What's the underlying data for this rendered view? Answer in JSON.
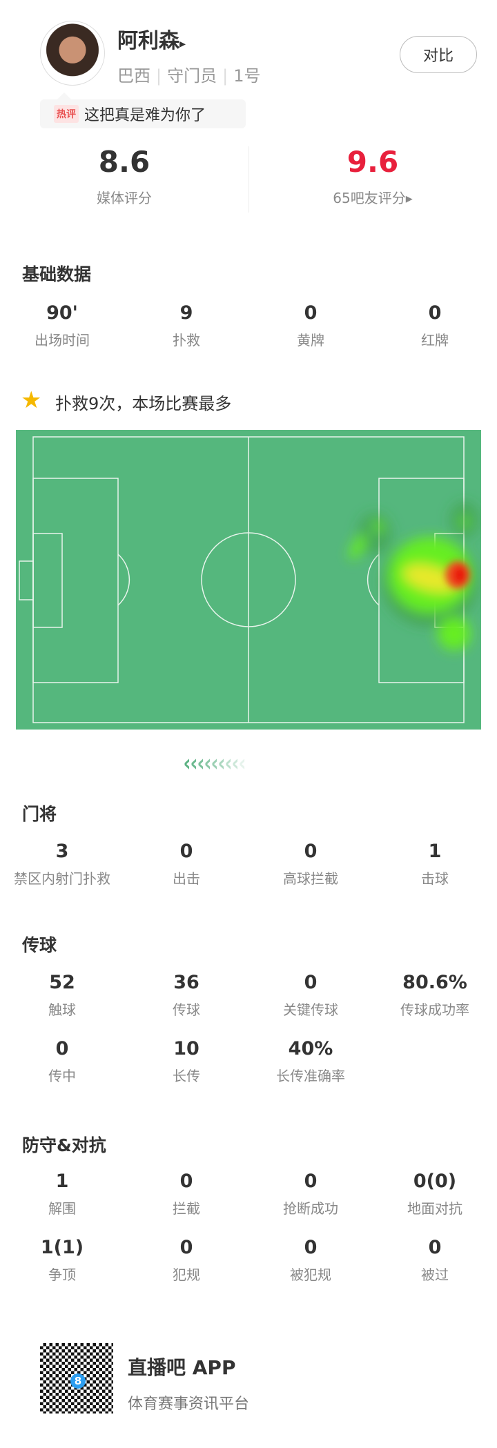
{
  "player": {
    "name": "阿利森",
    "arrow": "▸",
    "nation": "巴西",
    "position": "守门员",
    "number": "1号",
    "compare_label": "对比"
  },
  "hot_comment": {
    "tag": "热评",
    "text": "这把真是难为你了"
  },
  "ratings": {
    "media_value": "8.6",
    "media_label": "媒体评分",
    "fan_value": "9.6",
    "fan_label": "65吧友评分▸",
    "fan_color": "#e8203c"
  },
  "basic": {
    "title": "基础数据",
    "items": [
      {
        "v": "90'",
        "l": "出场时间"
      },
      {
        "v": "9",
        "l": "扑救"
      },
      {
        "v": "0",
        "l": "黄牌"
      },
      {
        "v": "0",
        "l": "红牌"
      }
    ]
  },
  "highlight": {
    "icon": "star-icon",
    "text": "扑救9次，本场比赛最多"
  },
  "heatmap": {
    "pitch_color": "#55b77d",
    "line_color": "#e8f4ec"
  },
  "goalkeeping": {
    "title": "门将",
    "items": [
      {
        "v": "3",
        "l": "禁区内射门扑救"
      },
      {
        "v": "0",
        "l": "出击"
      },
      {
        "v": "0",
        "l": "高球拦截"
      },
      {
        "v": "1",
        "l": "击球"
      }
    ]
  },
  "passing": {
    "title": "传球",
    "items": [
      {
        "v": "52",
        "l": "触球"
      },
      {
        "v": "36",
        "l": "传球"
      },
      {
        "v": "0",
        "l": "关键传球"
      },
      {
        "v": "80.6%",
        "l": "传球成功率"
      },
      {
        "v": "0",
        "l": "传中"
      },
      {
        "v": "10",
        "l": "长传"
      },
      {
        "v": "40%",
        "l": "长传准确率"
      }
    ]
  },
  "defense": {
    "title": "防守&对抗",
    "items": [
      {
        "v": "1",
        "l": "解围"
      },
      {
        "v": "0",
        "l": "拦截"
      },
      {
        "v": "0",
        "l": "抢断成功"
      },
      {
        "v": "0(0)",
        "l": "地面对抗"
      },
      {
        "v": "1(1)",
        "l": "争顶"
      },
      {
        "v": "0",
        "l": "犯规"
      },
      {
        "v": "0",
        "l": "被犯规"
      },
      {
        "v": "0",
        "l": "被过"
      }
    ]
  },
  "footer": {
    "app_name": "直播吧 APP",
    "slogan": "体育赛事资讯平台",
    "qr_badge": "8"
  }
}
